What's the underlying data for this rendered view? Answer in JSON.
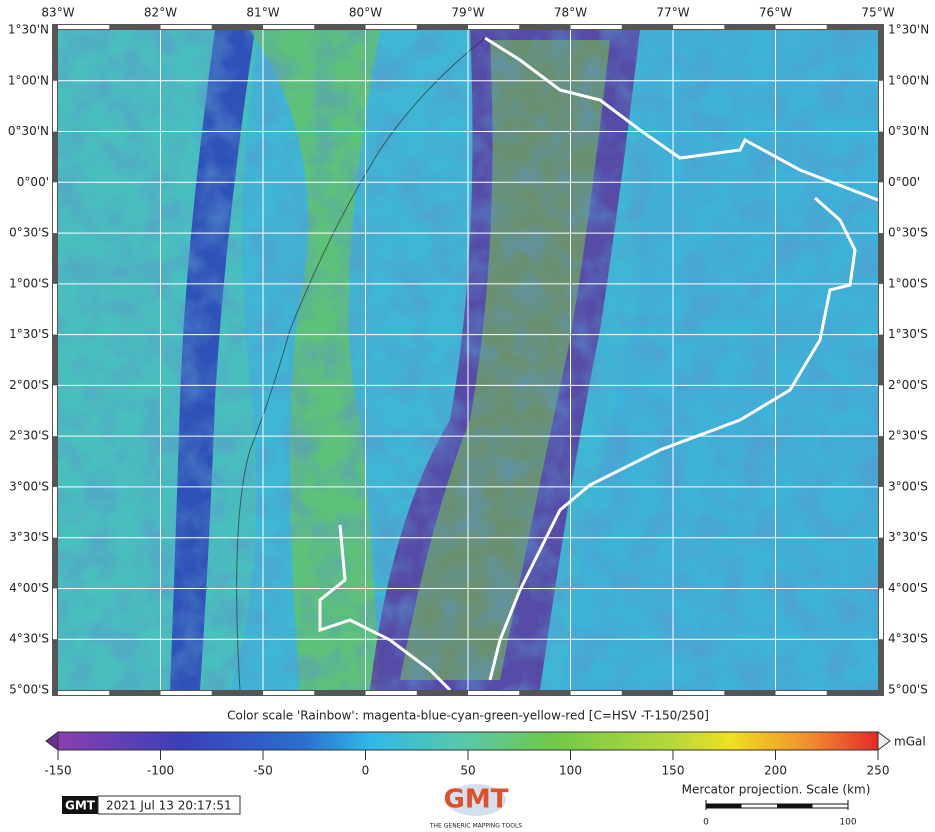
{
  "map": {
    "lon_labels": [
      "83°W",
      "82°W",
      "81°W",
      "80°W",
      "79°W",
      "78°W",
      "77°W",
      "76°W",
      "75°W"
    ],
    "lat_labels": [
      "1°30'N",
      "1°00'N",
      "0°30'N",
      "0°00'",
      "0°30'S",
      "1°00'S",
      "1°30'S",
      "2°00'S",
      "2°30'S",
      "3°00'S",
      "3°30'S",
      "4°00'S",
      "4°30'S",
      "5°00'S"
    ]
  },
  "colorbar": {
    "title": "Color scale 'Rainbow': magenta-blue-cyan-green-yellow-red [C=HSV -T-150/250]",
    "unit": "mGal",
    "range": [
      -150,
      250
    ],
    "ticks": [
      -150,
      -100,
      -50,
      0,
      50,
      100,
      150,
      200,
      250
    ]
  },
  "footer": {
    "logo": "GMT",
    "timestamp": "2021 Jul 13 20:17:51",
    "logo_caption": "THE GENERIC MAPPING TOOLS",
    "scale_title": "Mercator projection. Scale (km)",
    "scale_ticks": [
      0,
      100
    ]
  }
}
